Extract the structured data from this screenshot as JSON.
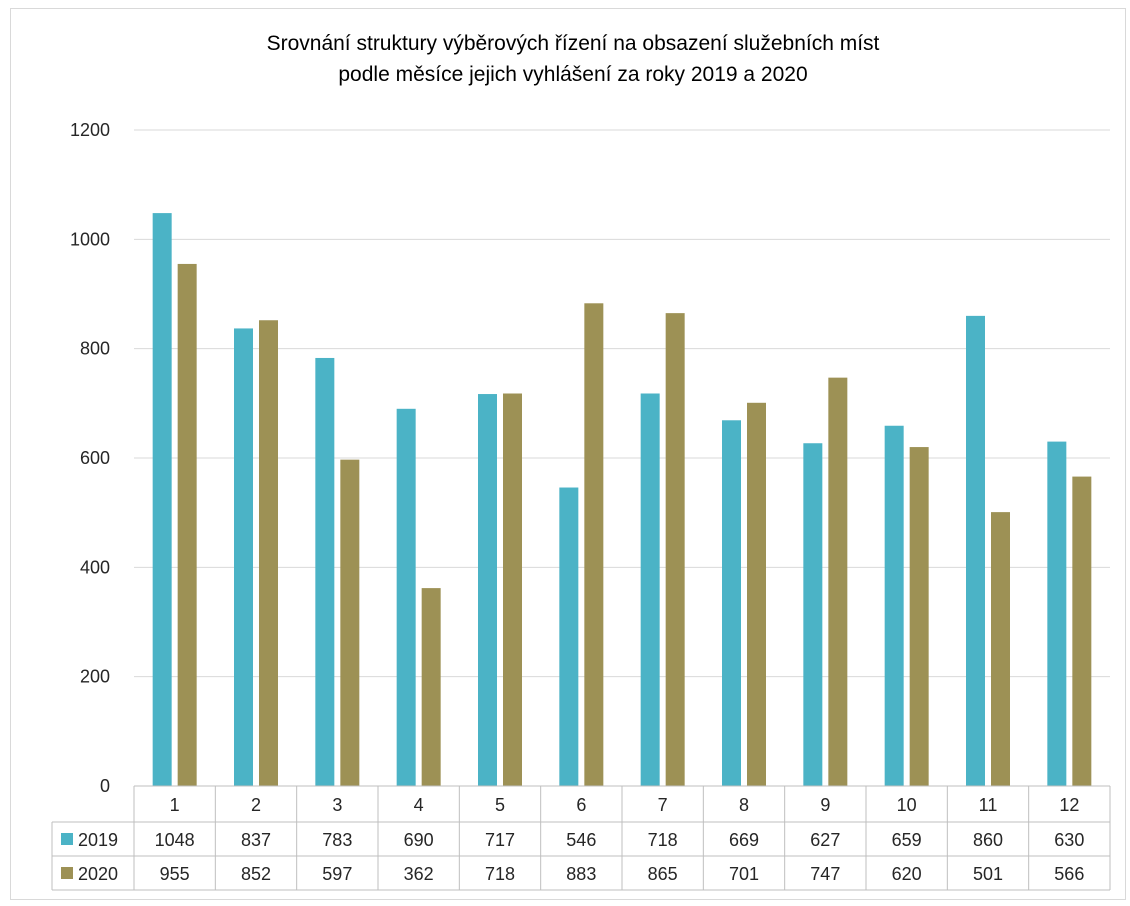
{
  "chart_data": {
    "type": "bar",
    "title_line1": "Srovnání struktury výběrových řízení na obsazení služebních míst",
    "title_line2": "podle měsíce jejich vyhlášení za roky 2019 a 2020",
    "categories": [
      "1",
      "2",
      "3",
      "4",
      "5",
      "6",
      "7",
      "8",
      "9",
      "10",
      "11",
      "12"
    ],
    "series": [
      {
        "name": "2019",
        "color": "#4bb3c6",
        "values": [
          1048,
          837,
          783,
          690,
          717,
          546,
          718,
          669,
          627,
          659,
          860,
          630
        ]
      },
      {
        "name": "2020",
        "color": "#9d9155",
        "values": [
          955,
          852,
          597,
          362,
          718,
          883,
          865,
          701,
          747,
          620,
          501,
          566
        ]
      }
    ],
    "yticks": [
      "0",
      "200",
      "400",
      "600",
      "800",
      "1000",
      "1200"
    ],
    "ylim": [
      0,
      1200
    ],
    "grid": true,
    "legend": "data-table",
    "data_table": true
  }
}
